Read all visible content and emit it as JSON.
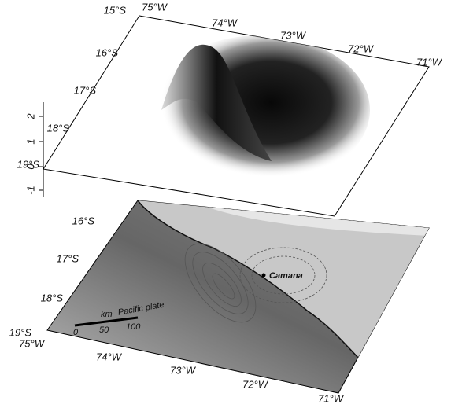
{
  "surface": {
    "lat_labels": [
      "15°S",
      "16°S",
      "17°S",
      "18°S",
      "19°S"
    ],
    "lon_labels": [
      "75°W",
      "74°W",
      "73°W",
      "72°W",
      "71°W"
    ],
    "z_labels": [
      "2",
      "1",
      "0",
      "-1"
    ]
  },
  "map": {
    "lat_labels": [
      "16°S",
      "17°S",
      "18°S",
      "19°S"
    ],
    "lon_labels": [
      "75°W",
      "74°W",
      "73°W",
      "72°W",
      "71°W"
    ],
    "place": "Camana",
    "region": "Pacific plate",
    "scale": {
      "unit": "km",
      "ticks": [
        "0",
        "50",
        "100"
      ]
    }
  }
}
